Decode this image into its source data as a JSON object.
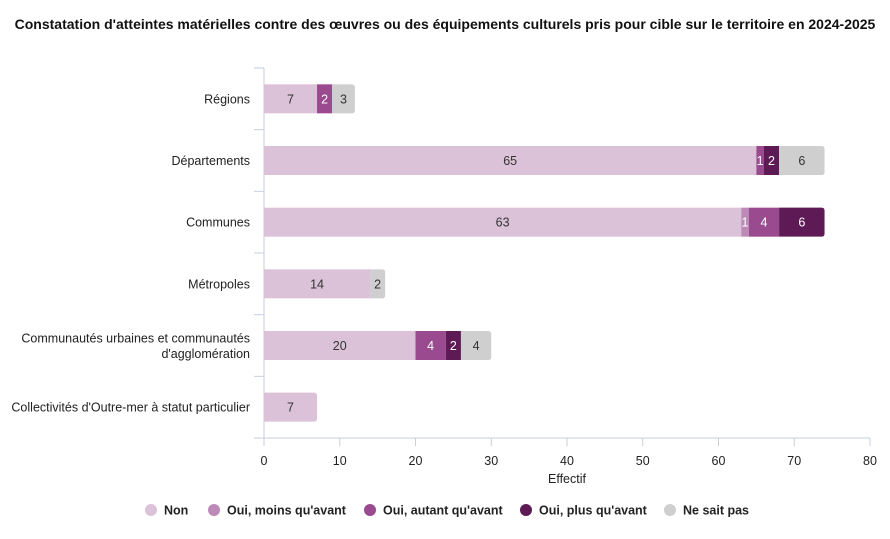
{
  "chart_data": {
    "type": "bar",
    "orientation": "horizontal",
    "stacked": true,
    "title": "Constatation d'atteintes matérielles contre des œuvres ou des équipements culturels pris pour cible sur le territoire en 2024-2025",
    "xlabel": "Effectif",
    "ylabel": "",
    "xlim": [
      0,
      80
    ],
    "xticks": [
      0,
      10,
      20,
      30,
      40,
      50,
      60,
      70,
      80
    ],
    "categories": [
      [
        "Régions"
      ],
      [
        "Départements"
      ],
      [
        "Communes"
      ],
      [
        "Métropoles"
      ],
      [
        "Communautés urbaines et communautés",
        "d'agglomération"
      ],
      [
        "Collectivités d'Outre-mer à statut particulier"
      ]
    ],
    "series": [
      {
        "name": "Non",
        "color": "#dcc2d8",
        "label_color": "#333333",
        "values": [
          7,
          65,
          63,
          14,
          20,
          7
        ]
      },
      {
        "name": "Oui, moins qu'avant",
        "color": "#bd8ab7",
        "label_color": "#ffffff",
        "values": [
          0,
          0,
          1,
          0,
          0,
          0
        ]
      },
      {
        "name": "Oui, autant qu'avant",
        "color": "#9a4a8f",
        "label_color": "#ffffff",
        "values": [
          2,
          1,
          4,
          0,
          4,
          0
        ]
      },
      {
        "name": "Oui, plus qu'avant",
        "color": "#5e1a55",
        "label_color": "#ffffff",
        "values": [
          0,
          2,
          6,
          0,
          2,
          0
        ]
      },
      {
        "name": "Ne sait pas",
        "color": "#cfcfcf",
        "label_color": "#333333",
        "values": [
          3,
          6,
          0,
          2,
          4,
          0
        ]
      }
    ]
  }
}
